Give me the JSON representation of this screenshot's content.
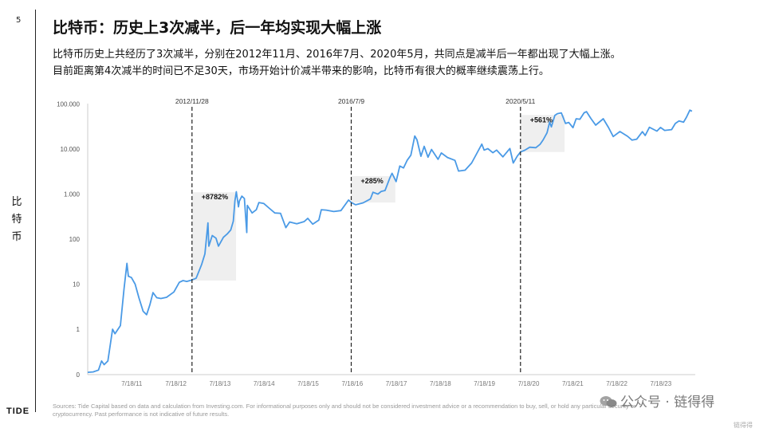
{
  "page": {
    "number": "5",
    "side_label": [
      "比",
      "特",
      "币"
    ],
    "brand": "TIDE",
    "title": "比特币：历史上3次减半，后一年均实现大幅上涨",
    "subtitle_lines": [
      "比特币历史上共经历了3次减半，分别在2012年11月、2016年7月、2020年5月，共同点是减半后一年都出现了大幅上涨。",
      "目前距离第4次减半的时间已不足30天，市场开始计价减半带来的影响，比特币有很大的概率继续震荡上行。"
    ],
    "source_note": "Sources: Tide Capital based on data and calculation from Investing.com. For informational purposes only and should not be considered investment advice or a recommendation to buy, sell, or hold any particular security or cryptocurrency. Past performance is not indicative of future results.",
    "watermark": "公众号 · 链得得",
    "corner_mark": "链得得"
  },
  "chart_data": {
    "type": "line",
    "title": "",
    "xlabel": "",
    "ylabel": "",
    "y_scale": "log",
    "y_ticks": [
      {
        "value": 0,
        "label": "0"
      },
      {
        "value": 1,
        "label": "1"
      },
      {
        "value": 10,
        "label": "10"
      },
      {
        "value": 100,
        "label": "100"
      },
      {
        "value": 1000,
        "label": "1.000"
      },
      {
        "value": 10000,
        "label": "10.000"
      },
      {
        "value": 100000,
        "label": "100.000"
      }
    ],
    "x_range": [
      "2010-07-18",
      "2024-04-01"
    ],
    "x_ticks": [
      "7/18/11",
      "7/18/12",
      "7/18/13",
      "7/18/14",
      "7/18/15",
      "7/18/16",
      "7/18/17",
      "7/18/18",
      "7/18/19",
      "7/18/20",
      "7/18/21",
      "7/18/22",
      "7/18/23"
    ],
    "grid": false,
    "line_color": "#4a9ae6",
    "halvings": [
      {
        "date": "2012-11-28",
        "label": "2012/11/28",
        "gain": "+8782%",
        "price_start": 12,
        "price_peak": 1100,
        "window_end": "2013-11-28"
      },
      {
        "date": "2016-07-09",
        "label": "2016/7/9",
        "gain": "+285%",
        "price_start": 650,
        "price_peak": 2500,
        "window_end": "2017-07-09"
      },
      {
        "date": "2020-05-11",
        "label": "2020/5/11",
        "gain": "+561%",
        "price_start": 8600,
        "price_peak": 57000,
        "window_end": "2021-05-11"
      }
    ],
    "series": [
      {
        "name": "",
        "points": [
          [
            "2010-07-18",
            0.05
          ],
          [
            "2010-09-01",
            0.06
          ],
          [
            "2010-10-15",
            0.1
          ],
          [
            "2010-11-10",
            0.3
          ],
          [
            "2010-12-01",
            0.22
          ],
          [
            "2011-01-01",
            0.3
          ],
          [
            "2011-02-09",
            1.0
          ],
          [
            "2011-03-01",
            0.9
          ],
          [
            "2011-04-15",
            1.2
          ],
          [
            "2011-05-15",
            8
          ],
          [
            "2011-06-08",
            29
          ],
          [
            "2011-06-20",
            15
          ],
          [
            "2011-07-15",
            14
          ],
          [
            "2011-08-15",
            10
          ],
          [
            "2011-09-15",
            5
          ],
          [
            "2011-10-20",
            2.5
          ],
          [
            "2011-11-18",
            2.1
          ],
          [
            "2011-12-15",
            3.5
          ],
          [
            "2012-01-10",
            6.5
          ],
          [
            "2012-02-10",
            5
          ],
          [
            "2012-03-15",
            4.8
          ],
          [
            "2012-05-01",
            5.1
          ],
          [
            "2012-07-01",
            6.7
          ],
          [
            "2012-08-15",
            11
          ],
          [
            "2012-09-15",
            12
          ],
          [
            "2012-10-15",
            11.5
          ],
          [
            "2012-11-28",
            12.4
          ],
          [
            "2013-01-01",
            13.5
          ],
          [
            "2013-02-15",
            27
          ],
          [
            "2013-03-15",
            47
          ],
          [
            "2013-04-09",
            230
          ],
          [
            "2013-04-16",
            70
          ],
          [
            "2013-05-15",
            120
          ],
          [
            "2013-06-15",
            105
          ],
          [
            "2013-07-05",
            70
          ],
          [
            "2013-08-15",
            110
          ],
          [
            "2013-09-15",
            130
          ],
          [
            "2013-10-15",
            160
          ],
          [
            "2013-11-05",
            250
          ],
          [
            "2013-11-18",
            700
          ],
          [
            "2013-11-30",
            1130
          ],
          [
            "2013-12-18",
            520
          ],
          [
            "2013-12-25",
            700
          ],
          [
            "2014-01-15",
            900
          ],
          [
            "2014-02-05",
            800
          ],
          [
            "2014-02-25",
            140
          ],
          [
            "2014-03-01",
            560
          ],
          [
            "2014-04-10",
            380
          ],
          [
            "2014-05-15",
            450
          ],
          [
            "2014-06-05",
            650
          ],
          [
            "2014-07-15",
            620
          ],
          [
            "2014-09-01",
            480
          ],
          [
            "2014-10-15",
            380
          ],
          [
            "2014-12-01",
            375
          ],
          [
            "2015-01-14",
            180
          ],
          [
            "2015-02-15",
            240
          ],
          [
            "2015-04-15",
            220
          ],
          [
            "2015-06-15",
            245
          ],
          [
            "2015-07-15",
            290
          ],
          [
            "2015-08-25",
            215
          ],
          [
            "2015-10-15",
            265
          ],
          [
            "2015-11-04",
            450
          ],
          [
            "2015-12-15",
            440
          ],
          [
            "2016-02-15",
            410
          ],
          [
            "2016-04-15",
            430
          ],
          [
            "2016-06-17",
            740
          ],
          [
            "2016-07-09",
            650
          ],
          [
            "2016-08-15",
            580
          ],
          [
            "2016-10-15",
            640
          ],
          [
            "2016-12-15",
            780
          ],
          [
            "2017-01-05",
            1100
          ],
          [
            "2017-02-15",
            1000
          ],
          [
            "2017-03-15",
            1150
          ],
          [
            "2017-04-15",
            1200
          ],
          [
            "2017-05-25",
            2300
          ],
          [
            "2017-06-12",
            2900
          ],
          [
            "2017-07-16",
            1900
          ],
          [
            "2017-08-15",
            4200
          ],
          [
            "2017-09-15",
            3800
          ],
          [
            "2017-10-15",
            5600
          ],
          [
            "2017-11-15",
            7300
          ],
          [
            "2017-12-17",
            19500
          ],
          [
            "2018-01-05",
            16000
          ],
          [
            "2018-02-06",
            6900
          ],
          [
            "2018-03-05",
            11500
          ],
          [
            "2018-04-06",
            6600
          ],
          [
            "2018-05-05",
            9800
          ],
          [
            "2018-06-28",
            5900
          ],
          [
            "2018-07-25",
            8200
          ],
          [
            "2018-09-15",
            6500
          ],
          [
            "2018-11-15",
            5600
          ],
          [
            "2018-12-15",
            3250
          ],
          [
            "2019-02-07",
            3400
          ],
          [
            "2019-04-02",
            4900
          ],
          [
            "2019-05-15",
            8000
          ],
          [
            "2019-06-26",
            12900
          ],
          [
            "2019-07-15",
            9500
          ],
          [
            "2019-08-15",
            10200
          ],
          [
            "2019-09-25",
            8300
          ],
          [
            "2019-10-26",
            9500
          ],
          [
            "2019-12-17",
            6700
          ],
          [
            "2020-02-13",
            10300
          ],
          [
            "2020-03-12",
            4900
          ],
          [
            "2020-04-15",
            7000
          ],
          [
            "2020-05-11",
            8600
          ],
          [
            "2020-06-15",
            9400
          ],
          [
            "2020-07-27",
            11000
          ],
          [
            "2020-09-15",
            10700
          ],
          [
            "2020-10-21",
            12800
          ],
          [
            "2020-11-15",
            16000
          ],
          [
            "2020-12-17",
            23000
          ],
          [
            "2021-01-08",
            40000
          ],
          [
            "2021-01-22",
            31000
          ],
          [
            "2021-02-20",
            56000
          ],
          [
            "2021-03-13",
            61000
          ],
          [
            "2021-04-14",
            63500
          ],
          [
            "2021-05-19",
            37000
          ],
          [
            "2021-06-15",
            39000
          ],
          [
            "2021-07-20",
            29800
          ],
          [
            "2021-08-15",
            47000
          ],
          [
            "2021-09-15",
            46000
          ],
          [
            "2021-10-20",
            64000
          ],
          [
            "2021-11-09",
            67500
          ],
          [
            "2021-12-15",
            48000
          ],
          [
            "2022-01-24",
            34000
          ],
          [
            "2022-03-28",
            47000
          ],
          [
            "2022-05-10",
            30000
          ],
          [
            "2022-06-18",
            19000
          ],
          [
            "2022-08-13",
            24500
          ],
          [
            "2022-10-15",
            19200
          ],
          [
            "2022-11-21",
            15800
          ],
          [
            "2022-12-30",
            16600
          ],
          [
            "2023-02-15",
            24300
          ],
          [
            "2023-03-10",
            20000
          ],
          [
            "2023-04-14",
            30400
          ],
          [
            "2023-06-15",
            25000
          ],
          [
            "2023-07-15",
            30200
          ],
          [
            "2023-08-18",
            26000
          ],
          [
            "2023-10-15",
            27000
          ],
          [
            "2023-11-15",
            37000
          ],
          [
            "2023-12-15",
            42000
          ],
          [
            "2024-01-22",
            39500
          ],
          [
            "2024-02-15",
            51000
          ],
          [
            "2024-03-14",
            73000
          ],
          [
            "2024-04-01",
            69000
          ]
        ]
      }
    ]
  }
}
